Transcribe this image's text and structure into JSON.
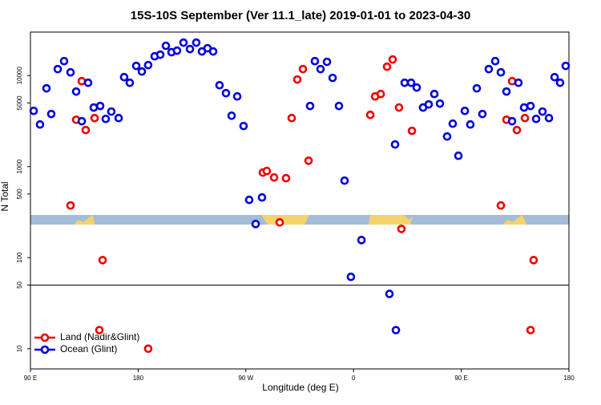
{
  "chart_data": {
    "type": "scatter",
    "title": "15S-10S September (Ver 11.1_late)   2019-01-01 to 2023-04-30",
    "xlabel": "Longitude (deg E)",
    "ylabel": "N Total",
    "xlim": [
      90,
      540
    ],
    "ylim": [
      6,
      30000
    ],
    "yscale": "log",
    "xticks": [
      {
        "value": 90,
        "label": "90 E"
      },
      180,
      {
        "value": 270,
        "label": "90 W"
      },
      {
        "value": 360,
        "label": "0"
      },
      {
        "value": 450,
        "label": "90 E"
      },
      {
        "value": 540,
        "label": "180"
      }
    ],
    "yticks": [
      10,
      50,
      100,
      500,
      1000,
      5000,
      10000
    ],
    "reference_line": 50,
    "legend": "lower left",
    "series": [
      {
        "name": "Land (Nadir&Glint)",
        "color": "#ee0000",
        "x": [
          123.5,
          128.2,
          132.9,
          136.2,
          143.6,
          150.3,
          147.6,
          188.4,
          284.2,
          287.5,
          293.6,
          298.3,
          303.6,
          308.3,
          313,
          317.7,
          322.4,
          374,
          378,
          382.7,
          388,
          392.7,
          398,
          400,
          408.8,
          483.1,
          487.8,
          492.5,
          496.5,
          503.2,
          510.5,
          507.9
        ],
        "values": [
          374,
          3270,
          8670,
          2520,
          3410,
          94,
          16,
          10,
          860,
          895,
          760,
          244,
          745,
          3410,
          9040,
          11760,
          1160,
          3700,
          5900,
          6270,
          12500,
          15000,
          4450,
          207,
          2470,
          374,
          3270,
          8670,
          2520,
          3410,
          94,
          16
        ]
      },
      {
        "name": "Ocean (Glint)",
        "color": "#0000dd",
        "x": [
          92.7,
          98,
          103.4,
          107.4,
          112.8,
          118.1,
          123.5,
          128.2,
          132.9,
          138.2,
          142.9,
          148.3,
          152.9,
          157.6,
          163.7,
          168.3,
          173,
          178.4,
          183.1,
          188.4,
          193.8,
          198.5,
          203.2,
          207.9,
          212.5,
          217.9,
          223.3,
          228.6,
          233.3,
          238,
          242.7,
          248,
          253.4,
          258.1,
          262.8,
          268.1,
          272.8,
          278.2,
          283.5,
          323.7,
          327.7,
          332.4,
          337.8,
          342.5,
          347.8,
          352.5,
          357.8,
          366.6,
          390,
          394.7,
          395.4,
          402.7,
          408.1,
          412.8,
          418.1,
          422.8,
          427.5,
          432.2,
          438.2,
          442.9,
          447.6,
          453,
          457.6,
          463,
          467.7,
          473,
          478.4,
          483.1,
          487.8,
          492.5,
          497.8,
          502.5,
          507.9,
          512.6,
          517.9,
          523.3,
          528,
          532.6,
          537.3
        ],
        "values": [
          4090,
          2900,
          7230,
          3780,
          11760,
          14400,
          10840,
          6670,
          3150,
          8330,
          4450,
          4630,
          3340,
          4020,
          3410,
          9600,
          8330,
          12760,
          11070,
          13020,
          16260,
          16940,
          21200,
          18030,
          18760,
          22970,
          19530,
          22970,
          18370,
          19950,
          18370,
          7830,
          6400,
          3620,
          5900,
          2790,
          431,
          234,
          458,
          4630,
          14400,
          11760,
          14130,
          9420,
          4630,
          701,
          61.5,
          156,
          40,
          1750,
          16,
          8330,
          8330,
          7380,
          4450,
          4820,
          6270,
          4920,
          2140,
          2960,
          1315,
          4090,
          2900,
          7230,
          3780,
          11760,
          14400,
          10840,
          6670,
          3150,
          8330,
          4450,
          4630,
          3340,
          4020,
          3410,
          9600,
          8330,
          12760
        ]
      }
    ]
  }
}
